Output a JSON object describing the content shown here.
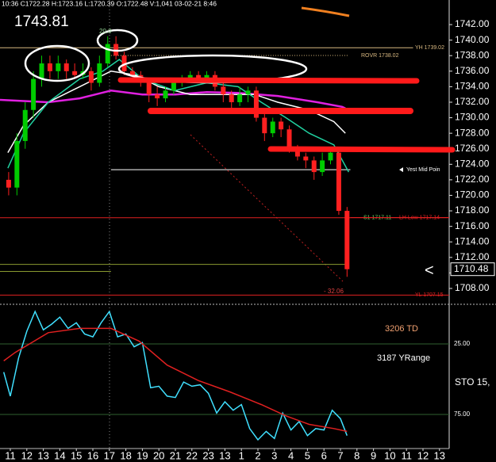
{
  "header": {
    "quote": "10:36 C1722.28 H:1723.16 L:1720.39 O:1722.48 V:1,041 03-02-21 8:46",
    "big_price": "1743.81"
  },
  "chart_data": [
    {
      "type": "candlestick",
      "xlim": [
        -0.625,
        26.587
      ],
      "ylim": [
        1706.06,
        1745.17
      ],
      "yticks": [
        {
          "value": 1708,
          "label": "1708.00"
        },
        {
          "value": 1710,
          "label": "1710.00"
        },
        {
          "value": 1712,
          "label": "1712.00"
        },
        {
          "value": 1714,
          "label": "1714.00"
        },
        {
          "value": 1716,
          "label": "1716.00"
        },
        {
          "value": 1718,
          "label": "1718.00"
        },
        {
          "value": 1720,
          "label": "1720.00"
        },
        {
          "value": 1722,
          "label": "1722.00"
        },
        {
          "value": 1724,
          "label": "1724.00"
        },
        {
          "value": 1726,
          "label": "1726.00"
        },
        {
          "value": 1728,
          "label": "1728.00"
        },
        {
          "value": 1730,
          "label": "1730.00"
        },
        {
          "value": 1732,
          "label": "1732.00"
        },
        {
          "value": 1734,
          "label": "1734.00"
        },
        {
          "value": 1736,
          "label": "1736.00"
        },
        {
          "value": 1738,
          "label": "1738.00"
        },
        {
          "value": 1740,
          "label": "1740.00"
        },
        {
          "value": 1742,
          "label": "1742.00"
        }
      ],
      "up_color": "#00cc00",
      "down_color": "#ff2020",
      "x": [
        -0.1,
        0.4,
        0.9,
        1.4,
        1.9,
        2.4,
        2.9,
        3.4,
        3.9,
        4.4,
        4.9,
        5.4,
        5.9,
        6.4,
        6.9,
        7.4,
        7.9,
        8.4,
        8.9,
        9.4,
        9.9,
        10.4,
        10.9,
        11.4,
        11.9,
        12.4,
        12.9,
        13.4,
        13.9,
        14.4,
        14.9,
        15.4,
        15.9,
        16.4,
        16.9,
        17.4,
        17.9,
        18.4,
        18.9,
        19.4,
        19.9,
        20.4
      ],
      "open": [
        1722,
        1721,
        1727,
        1731,
        1735,
        1737,
        1736,
        1737,
        1736,
        1735.5,
        1736,
        1734.5,
        1737,
        1739.5,
        1738,
        1736,
        1735.5,
        1734.5,
        1733,
        1732.5,
        1733.5,
        1734.5,
        1735,
        1735.5,
        1735,
        1735.5,
        1734,
        1733,
        1732,
        1733,
        1733.5,
        1730,
        1728,
        1729.5,
        1728.5,
        1726,
        1725,
        1724.5,
        1723,
        1724.5,
        1725.5,
        1718
      ],
      "high": [
        1723,
        1728,
        1732,
        1736,
        1738,
        1738,
        1738,
        1737.5,
        1737,
        1737,
        1736.5,
        1738,
        1740.5,
        1740.5,
        1738.5,
        1736.5,
        1736,
        1735,
        1734,
        1734,
        1735,
        1735.5,
        1736,
        1736,
        1736,
        1736,
        1734.5,
        1733.5,
        1734,
        1734,
        1734,
        1730.5,
        1730,
        1730,
        1729,
        1726.5,
        1725.5,
        1725,
        1725.5,
        1726,
        1726,
        1718.5
      ],
      "low": [
        1720,
        1720,
        1726,
        1730,
        1734,
        1735,
        1735,
        1735,
        1735,
        1735,
        1733.5,
        1734,
        1736.5,
        1737.5,
        1735.5,
        1734.5,
        1734,
        1732,
        1731.5,
        1732,
        1733,
        1734,
        1734.5,
        1734.5,
        1734.5,
        1733.5,
        1732,
        1731,
        1731.5,
        1732,
        1729.5,
        1727,
        1727.5,
        1727.5,
        1725.5,
        1724.5,
        1723.5,
        1722,
        1722.5,
        1724,
        1717.5,
        1709.5
      ],
      "close": [
        1721,
        1727,
        1731,
        1735,
        1737,
        1736,
        1737,
        1736,
        1735.5,
        1736,
        1734.5,
        1737,
        1739.5,
        1738,
        1736,
        1735.5,
        1734.5,
        1733,
        1732.5,
        1733.5,
        1734.5,
        1735,
        1735.5,
        1735,
        1735.5,
        1734,
        1733,
        1732,
        1733,
        1733.5,
        1730,
        1728,
        1729.5,
        1728.5,
        1726,
        1725,
        1724.5,
        1723,
        1724.5,
        1725.5,
        1718,
        1710.48
      ],
      "series": [
        {
          "color": "#e020e0",
          "x": [
            -0.625,
            2.3,
            4.2,
            6.1,
            8,
            10,
            11.9,
            13.8,
            16.2,
            18.6,
            20.1,
            20.3
          ],
          "values": [
            1732.3,
            1732,
            1732.5,
            1733.5,
            1733,
            1733,
            1733.3,
            1733.2,
            1732.8,
            1732,
            1731.4,
            1731.2
          ]
        },
        {
          "color": "#ffffff",
          "x": [
            -0.15,
            0.8,
            2.3,
            4.2,
            6.1,
            7.6,
            9,
            10.9,
            12.8,
            14.8,
            16.2,
            18.1,
            19.6,
            20.3
          ],
          "values": [
            1725.5,
            1729,
            1732,
            1734,
            1736,
            1735.5,
            1734,
            1733,
            1733,
            1733,
            1732,
            1731,
            1729.5,
            1728
          ]
        },
        {
          "color": "#20d0a0",
          "x": [
            -0.15,
            0.8,
            2.3,
            4.2,
            5.6,
            6.6,
            8,
            9.95,
            11.9,
            13.8,
            15.2,
            16.7,
            18.1,
            19.6,
            20.5
          ],
          "values": [
            1723.5,
            1728,
            1732,
            1735,
            1736,
            1737.5,
            1735,
            1733.5,
            1734.5,
            1734,
            1732,
            1730,
            1728,
            1726.5,
            1723
          ]
        }
      ],
      "levels": [
        {
          "value": 1739.02,
          "label": "YH 1739.02",
          "color": "#d8b880",
          "x": [
            -0.625,
            24.4
          ]
        },
        {
          "value": 1738.02,
          "label": "ROVR 1738.02",
          "color": "#d8b880",
          "style": "dotted",
          "x": [
            6.1,
            20.5
          ]
        },
        {
          "value": 1723.3,
          "label": "Yest Mid Poin",
          "color": "#ffffff",
          "x": [
            6.1,
            20.6
          ]
        },
        {
          "value": 1717.11,
          "label": "S1 1717.11",
          "color": "#e02020",
          "x": [
            -0.625,
            26.587
          ]
        },
        {
          "value": 1717.14,
          "label": "LH Low 1717.14",
          "color": "#e02020",
          "x": [
            20.6,
            26.587
          ]
        },
        {
          "value": 1711.1,
          "color": "#8a9a30",
          "x": [
            -0.625,
            20.5
          ]
        },
        {
          "value": 1710.2,
          "color": "#8a9a30",
          "x": [
            -0.625,
            6.1
          ]
        },
        {
          "value": 1707.15,
          "label": "YL 1707.15",
          "color": "#e02020",
          "x": [
            -0.625,
            26.587
          ]
        }
      ],
      "last": 1710.48,
      "annotations": [
        "20.0",
        "- 32.06",
        "<"
      ]
    },
    {
      "type": "line",
      "xlim": [
        -0.625,
        26.587
      ],
      "ylim": [
        -1.97,
        98.6
      ],
      "inverted": true,
      "yticks": [
        {
          "value": 25,
          "label": "25.00"
        },
        {
          "value": 75,
          "label": "75.00"
        }
      ],
      "xticks": [
        {
          "value": 0,
          "label": "11"
        },
        {
          "value": 1,
          "label": "12"
        },
        {
          "value": 2,
          "label": "13"
        },
        {
          "value": 3,
          "label": "14"
        },
        {
          "value": 4,
          "label": "15"
        },
        {
          "value": 5,
          "label": "16"
        },
        {
          "value": 6,
          "label": "17"
        },
        {
          "value": 7,
          "label": "18"
        },
        {
          "value": 8,
          "label": "19"
        },
        {
          "value": 9,
          "label": "20"
        },
        {
          "value": 10,
          "label": "21"
        },
        {
          "value": 11,
          "label": "22"
        },
        {
          "value": 12,
          "label": "23"
        },
        13,
        {
          "value": 14,
          "label": "1"
        },
        {
          "value": 15,
          "label": "2"
        },
        {
          "value": 16,
          "label": "3"
        },
        {
          "value": 17,
          "label": "4"
        },
        {
          "value": 18,
          "label": "5"
        },
        {
          "value": 19,
          "label": "6"
        },
        {
          "value": 20,
          "label": "7"
        },
        {
          "value": 21,
          "label": "8"
        },
        {
          "value": 22,
          "label": "9"
        },
        {
          "value": 23,
          "label": "10"
        },
        {
          "value": 24,
          "label": "11"
        },
        {
          "value": 25,
          "label": "12"
        },
        {
          "value": 26,
          "label": "13"
        }
      ],
      "series": [
        {
          "color": "#40e0ff",
          "x": [
            -0.4,
            0,
            0.5,
            1,
            1.5,
            2,
            2.5,
            3,
            3.5,
            4,
            4.5,
            5,
            5.5,
            6,
            6.5,
            7,
            7.5,
            8,
            8.5,
            9,
            9.5,
            10,
            10.5,
            11,
            11.5,
            12,
            12.5,
            13,
            13.5,
            14,
            14.5,
            15,
            15.5,
            16,
            16.5,
            17,
            17.5,
            18,
            18.5,
            19,
            19.5,
            20,
            20.4
          ],
          "values": [
            45,
            62,
            35,
            16,
            2,
            15,
            11,
            6,
            14,
            10,
            18,
            20,
            10,
            2,
            20,
            18,
            27,
            24,
            56,
            55,
            62,
            63,
            52,
            55,
            54,
            60,
            74,
            66,
            72,
            68,
            85,
            93,
            87,
            92,
            74,
            86,
            80,
            90,
            85,
            86,
            72,
            78,
            90
          ]
        },
        {
          "color": "#e02020",
          "x": [
            -0.4,
            0.3,
            2.3,
            4.2,
            6.1,
            7.8,
            9.5,
            11.4,
            13.3,
            15.2,
            16.7,
            18.1,
            19.6,
            20.4
          ],
          "values": [
            37,
            31,
            17,
            14,
            14,
            23,
            40,
            51,
            59,
            68,
            76,
            82,
            85,
            87
          ]
        }
      ],
      "labels": [
        "3206 TD",
        "3187 YRange",
        "STO 15,"
      ]
    }
  ]
}
